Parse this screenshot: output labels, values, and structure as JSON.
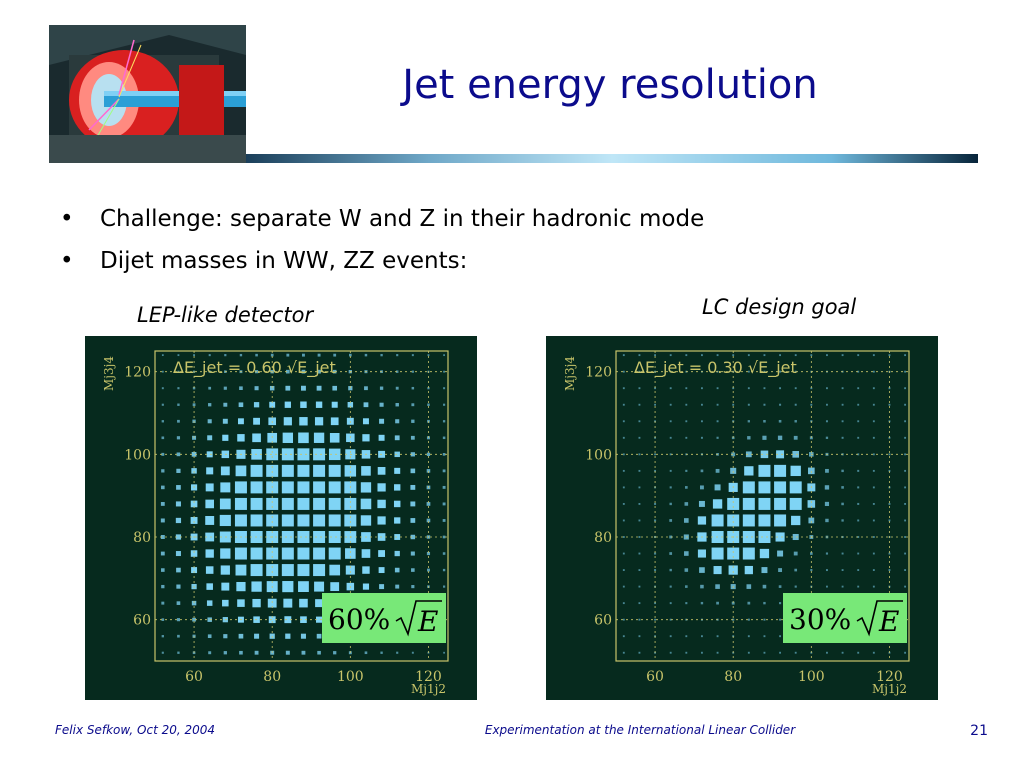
{
  "slide": {
    "title": "Jet energy resolution",
    "bullets": [
      "Challenge: separate W and Z in their hadronic mode",
      "Dijet masses in WW, ZZ events:"
    ],
    "bullet_glyph": "•",
    "footer": {
      "author_date": "Felix Sefkow, Oct 20, 2004",
      "talk_title": "Experimentation at the International Linear Collider",
      "page_number": "21"
    }
  },
  "colors": {
    "title": "#0b0b8c",
    "plot_background": "#062a1e",
    "frame": "#c8c46a",
    "points": "#7fd4f5",
    "badge_background": "#78e878"
  },
  "chart_data": [
    {
      "type": "scatter",
      "caption": "LEP-like detector",
      "title": "ΔE_jet = 0.60 √E_jet",
      "xlabel": "Mj1j2",
      "ylabel": "Mj3j4",
      "xlim": [
        50,
        125
      ],
      "ylim": [
        50,
        125
      ],
      "xticks": [
        60,
        80,
        100,
        120
      ],
      "yticks": [
        60,
        80,
        100,
        120
      ],
      "grid": true,
      "badge": "60%√E",
      "badge_parts": {
        "percent": "60%",
        "radicand": "E"
      },
      "peaks": [
        [
          80,
          80
        ],
        [
          91,
          91
        ]
      ],
      "spread": 16
    },
    {
      "type": "scatter",
      "caption": "LC design goal",
      "title": "ΔE_jet = 0.30 √E_jet",
      "xlabel": "Mj1j2",
      "ylabel": "Mj3j4",
      "xlim": [
        50,
        125
      ],
      "ylim": [
        50,
        125
      ],
      "xticks": [
        60,
        80,
        100,
        120
      ],
      "yticks": [
        60,
        80,
        100,
        120
      ],
      "grid": true,
      "badge": "30%√E",
      "badge_parts": {
        "percent": "30%",
        "radicand": "E"
      },
      "peaks": [
        [
          80,
          80
        ],
        [
          91,
          91
        ]
      ],
      "spread": 7
    }
  ]
}
